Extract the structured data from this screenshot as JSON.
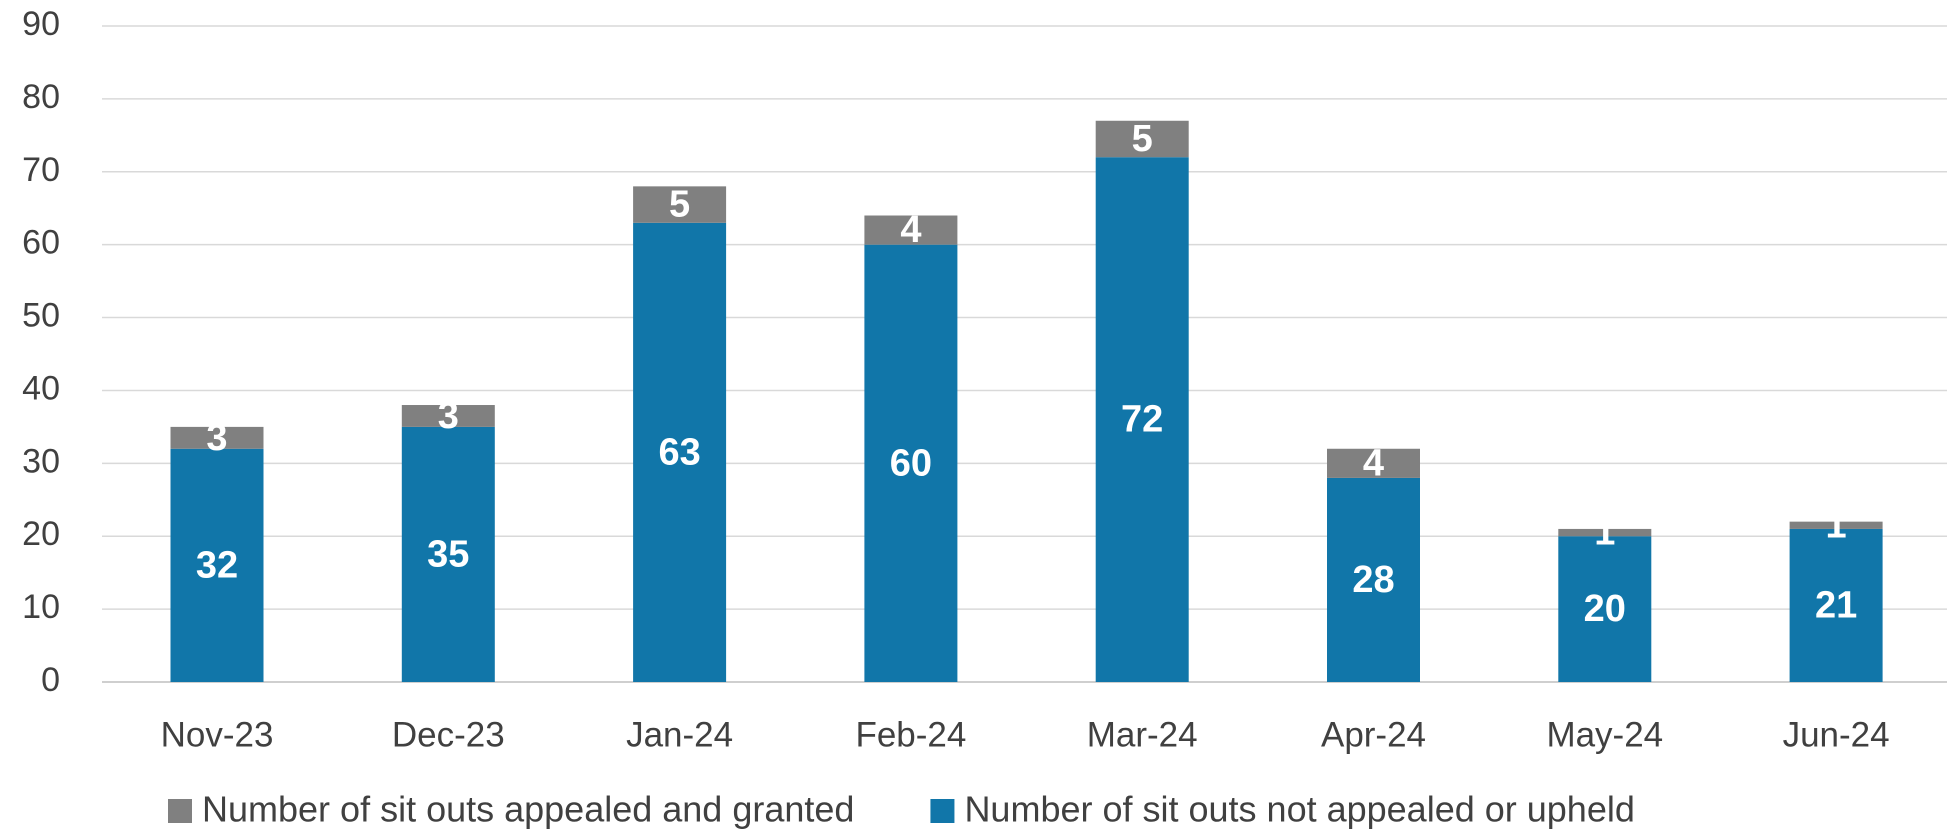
{
  "chart_data": {
    "type": "stacked_bar",
    "categories": [
      "Nov-23",
      "Dec-23",
      "Jan-24",
      "Feb-24",
      "Mar-24",
      "Apr-24",
      "May-24",
      "Jun-24"
    ],
    "series": [
      {
        "name": "Number of sit outs not appealed or upheld",
        "color": "#1176a9",
        "values": [
          32,
          35,
          63,
          60,
          72,
          28,
          20,
          21
        ]
      },
      {
        "name": "Number of sit outs appealed and granted",
        "color": "#808080",
        "values": [
          3,
          3,
          5,
          4,
          5,
          4,
          1,
          1
        ]
      }
    ],
    "ylim": [
      0,
      90
    ],
    "yticks": [
      0,
      10,
      20,
      30,
      40,
      50,
      60,
      70,
      80,
      90
    ],
    "grid": true,
    "legend": "bottom"
  }
}
